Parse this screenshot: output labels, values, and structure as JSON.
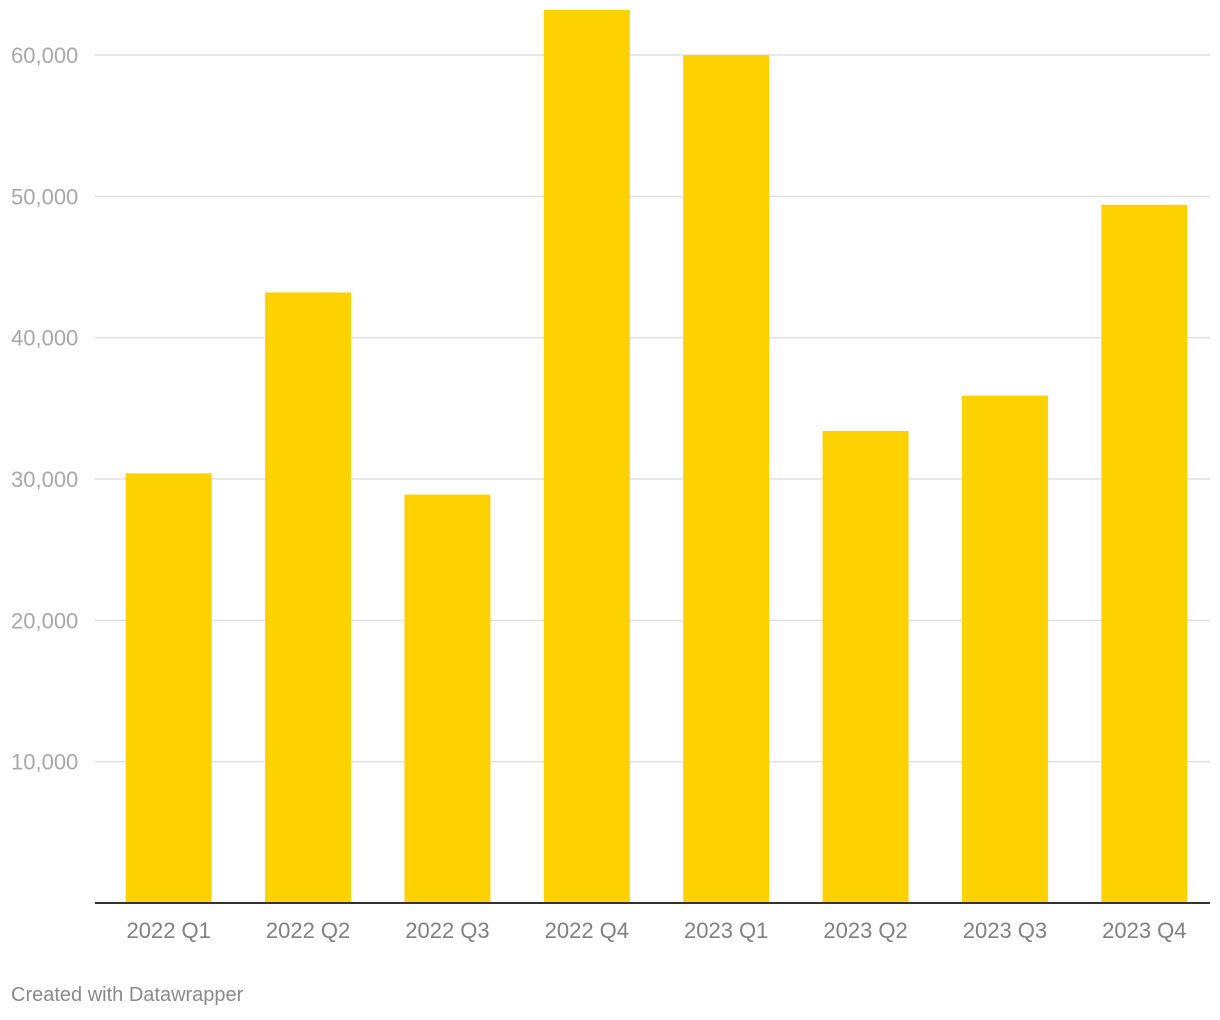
{
  "chart_data": {
    "type": "bar",
    "categories": [
      "2022 Q1",
      "2022 Q2",
      "2022 Q3",
      "2022 Q4",
      "2023 Q1",
      "2023 Q2",
      "2023 Q3",
      "2023 Q4"
    ],
    "values": [
      30400,
      43200,
      28900,
      63200,
      60000,
      33400,
      35900,
      49400
    ],
    "ylim": [
      0,
      63200
    ],
    "yticks": [
      10000,
      20000,
      30000,
      40000,
      50000,
      60000
    ],
    "ytick_labels": [
      "10,000",
      "20,000",
      "30,000",
      "40,000",
      "50,000",
      "60,000"
    ],
    "title": "",
    "xlabel": "",
    "ylabel": "",
    "grid": true,
    "bar_color": "#fdd200"
  },
  "footer": {
    "credit": "Created with Datawrapper"
  }
}
